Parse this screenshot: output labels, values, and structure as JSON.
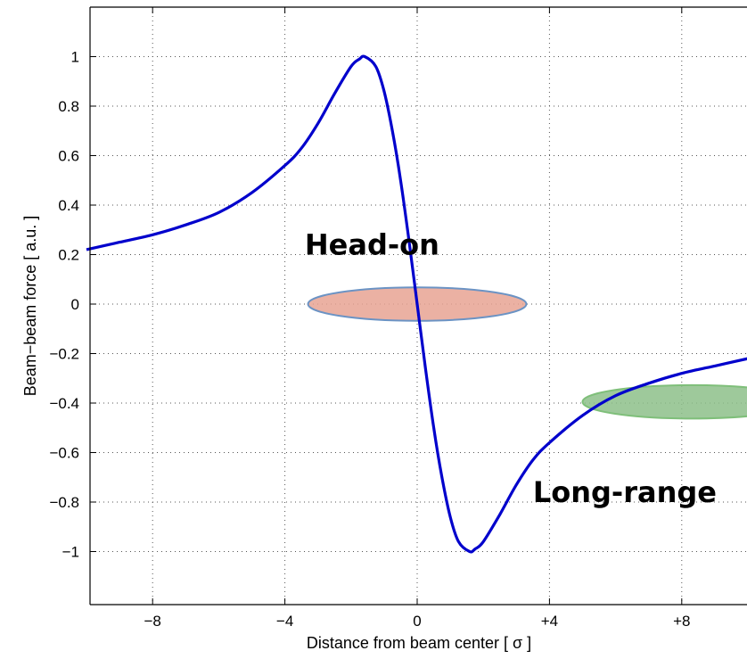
{
  "chart_data": {
    "type": "line",
    "xlabel": "Distance from beam center [ σ ]",
    "ylabel": "Beam−beam force [ a.u. ]",
    "xlim": [
      -10,
      10
    ],
    "ylim": [
      -1.2,
      1.2
    ],
    "grid": true,
    "x_ticks": [
      {
        "value": -8,
        "label": "−8"
      },
      {
        "value": -4,
        "label": "−4"
      },
      {
        "value": 0,
        "label": "0"
      },
      {
        "value": 4,
        "label": "+4"
      },
      {
        "value": 8,
        "label": "+8"
      }
    ],
    "y_ticks": [
      {
        "value": 1,
        "label": "1"
      },
      {
        "value": 0.8,
        "label": "0.8"
      },
      {
        "value": 0.6,
        "label": "0.6"
      },
      {
        "value": 0.4,
        "label": "0.4"
      },
      {
        "value": 0.2,
        "label": "0.2"
      },
      {
        "value": 0,
        "label": "0"
      },
      {
        "value": -0.2,
        "label": "−0.2"
      },
      {
        "value": -0.4,
        "label": "−0.4"
      },
      {
        "value": -0.6,
        "label": "−0.6"
      },
      {
        "value": -0.8,
        "label": "−0.8"
      },
      {
        "value": -1,
        "label": "−1"
      }
    ],
    "series": [
      {
        "color": "#0000cc",
        "x": [
          -10,
          -9,
          -8,
          -7,
          -6,
          -5,
          -4,
          -3.5,
          -3,
          -2.5,
          -2,
          -1.75,
          -1.585,
          -1.25,
          -1,
          -0.75,
          -0.5,
          -0.25,
          0,
          0.25,
          0.5,
          0.75,
          1,
          1.25,
          1.585,
          1.75,
          2,
          2.5,
          3,
          3.5,
          4,
          5,
          6,
          7,
          8,
          9,
          10
        ],
        "y": [
          0.22,
          0.25,
          0.28,
          0.32,
          0.37,
          0.45,
          0.56,
          0.63,
          0.73,
          0.85,
          0.96,
          0.99,
          1.0,
          0.96,
          0.86,
          0.7,
          0.5,
          0.26,
          0,
          -0.26,
          -0.5,
          -0.7,
          -0.86,
          -0.96,
          -1.0,
          -0.99,
          -0.96,
          -0.85,
          -0.73,
          -0.63,
          -0.56,
          -0.45,
          -0.37,
          -0.32,
          -0.28,
          -0.25,
          -0.22
        ]
      }
    ],
    "annotations": [
      {
        "text": "Head-on",
        "x": -3.4,
        "y": 0.2
      },
      {
        "text": "Long-range",
        "x": 3.5,
        "y": -0.8
      }
    ],
    "highlight_regions": [
      {
        "center_x": 0,
        "center_y": 0,
        "width_x": 6.6,
        "height_y": 0.135,
        "fill": "#e8a393",
        "stroke": "#6b93c4"
      },
      {
        "center_x": 8.3,
        "center_y": -0.395,
        "width_x": 6.6,
        "height_y": 0.135,
        "fill": "#8dc08a",
        "stroke": "#7fbf7a"
      }
    ]
  }
}
